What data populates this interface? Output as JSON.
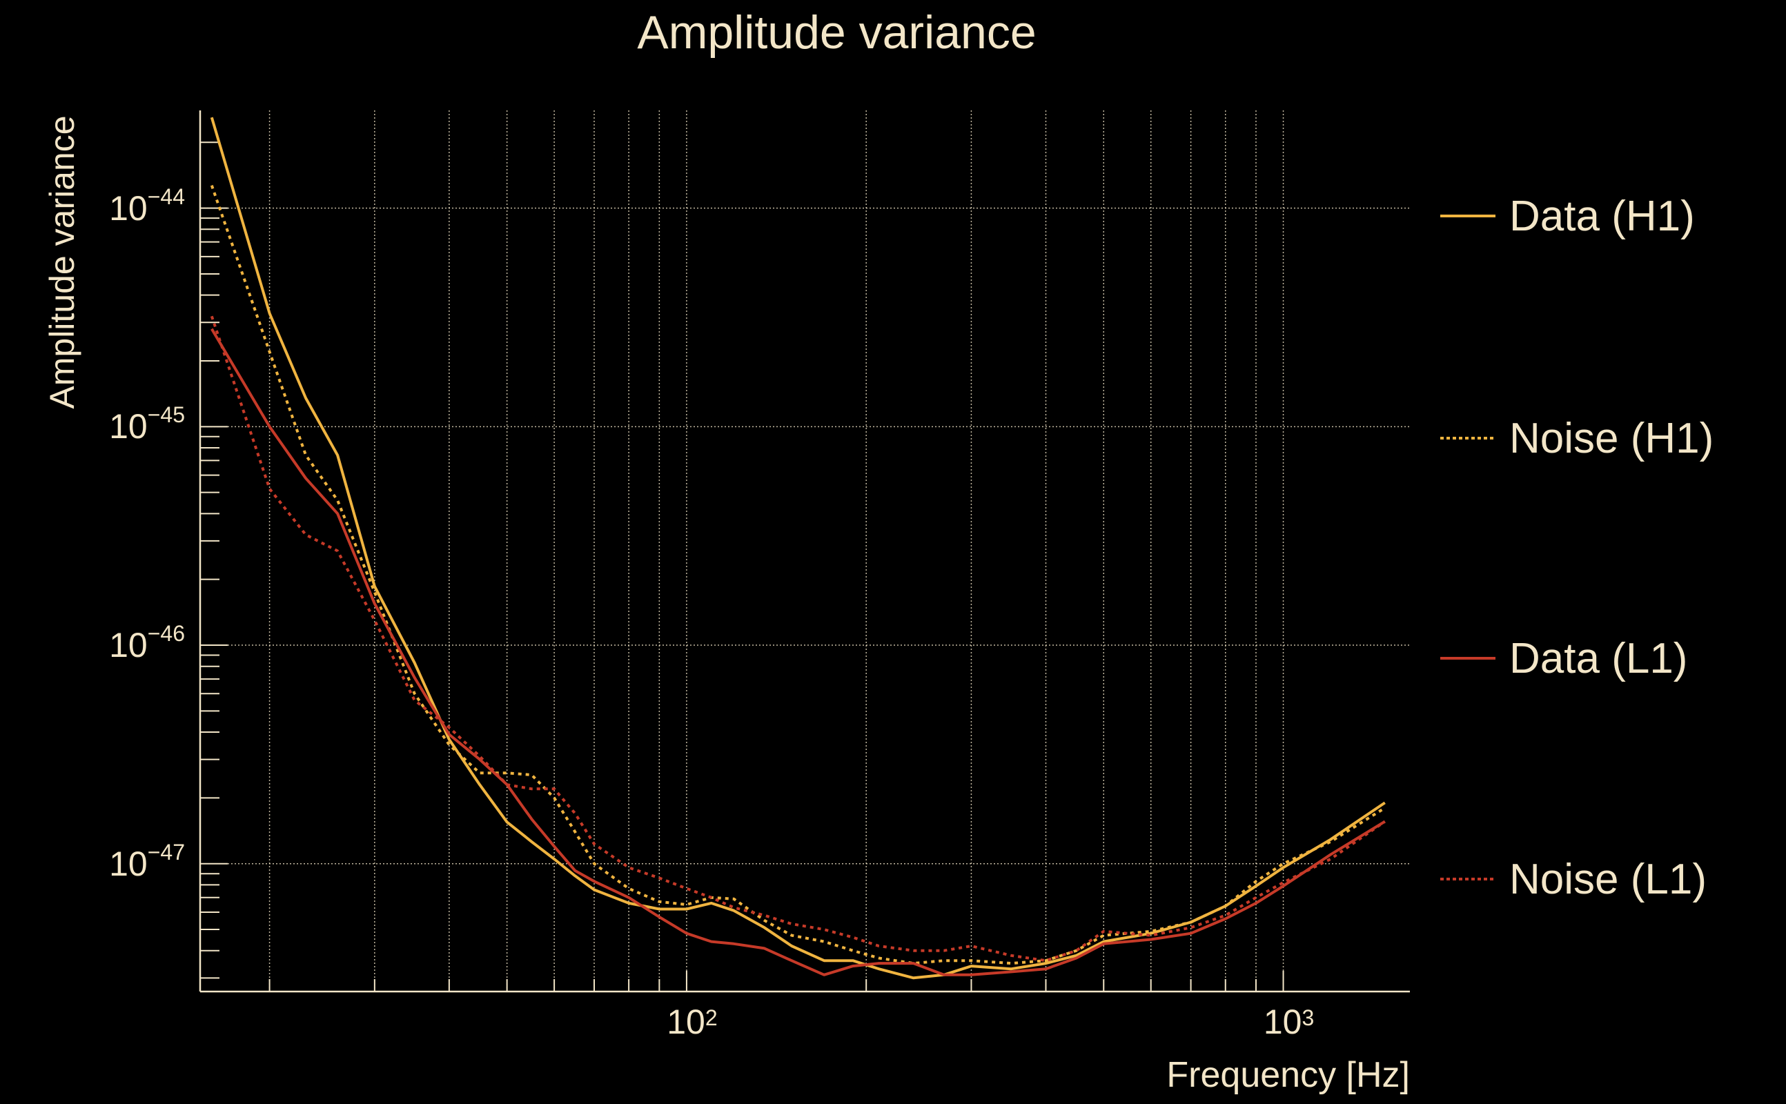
{
  "chart_data": {
    "type": "line",
    "title": "Amplitude variance",
    "xlabel": "Frequency [Hz]",
    "ylabel": "Amplitude variance",
    "xscale": "log",
    "yscale": "log",
    "xlim": [
      15.3,
      1630
    ],
    "ylim": [
      2.6e-48,
      2.8e-44
    ],
    "grid": true,
    "legend_position": "right",
    "x_ticks": [
      {
        "value": 100,
        "base": "10",
        "exp": "2"
      },
      {
        "value": 1000,
        "base": "10",
        "exp": "3"
      }
    ],
    "y_ticks": [
      {
        "value": 1e-44,
        "base": "10",
        "exp": "−44"
      },
      {
        "value": 1e-45,
        "base": "10",
        "exp": "−45"
      },
      {
        "value": 1e-46,
        "base": "10",
        "exp": "−46"
      },
      {
        "value": 1e-47,
        "base": "10",
        "exp": "−47"
      }
    ],
    "x": [
      16,
      20,
      23,
      26,
      30,
      35,
      40,
      45,
      50,
      55,
      60,
      65,
      70,
      80,
      90,
      100,
      110,
      120,
      135,
      150,
      170,
      190,
      210,
      240,
      270,
      300,
      350,
      400,
      450,
      500,
      600,
      700,
      800,
      900,
      1000,
      1200,
      1480
    ],
    "series": [
      {
        "name": "Data (H1)",
        "color": "#f0b440",
        "style": "solid",
        "values": [
          2.6e-44,
          3.3e-45,
          1.35e-45,
          7.4e-46,
          1.86e-46,
          8.3e-47,
          3.7e-47,
          2.3e-47,
          1.55e-47,
          1.26e-47,
          1.05e-47,
          8.8e-48,
          7.6e-48,
          6.6e-48,
          6.2e-48,
          6.2e-48,
          6.6e-48,
          6.1e-48,
          5.1e-48,
          4.2e-48,
          3.6e-48,
          3.6e-48,
          3.3e-48,
          3e-48,
          3.1e-48,
          3.4e-48,
          3.3e-48,
          3.5e-48,
          3.8e-48,
          4.4e-48,
          4.8e-48,
          5.4e-48,
          6.4e-48,
          7.9e-48,
          9.6e-48,
          1.29e-47,
          1.9e-47
        ]
      },
      {
        "name": "Noise (H1)",
        "color": "#f0b440",
        "style": "dotted",
        "values": [
          1.27e-44,
          2.2e-45,
          7.4e-46,
          4.6e-46,
          1.75e-46,
          6e-47,
          3.5e-47,
          2.6e-47,
          2.6e-47,
          2.55e-47,
          2e-47,
          1.4e-47,
          1e-47,
          7.7e-48,
          6.7e-48,
          6.5e-48,
          7e-48,
          6.9e-48,
          5.5e-48,
          4.7e-48,
          4.4e-48,
          4e-48,
          3.7e-48,
          3.5e-48,
          3.6e-48,
          3.6e-48,
          3.5e-48,
          3.6e-48,
          4e-48,
          4.7e-48,
          4.9e-48,
          5.4e-48,
          6.4e-48,
          8.3e-48,
          1e-47,
          1.26e-47,
          1.8e-47
        ]
      },
      {
        "name": "Data (L1)",
        "color": "#c63a28",
        "style": "solid",
        "values": [
          2.8e-45,
          1e-45,
          5.8e-46,
          4e-46,
          1.55e-46,
          7.1e-47,
          3.9e-47,
          3e-47,
          2.3e-47,
          1.6e-47,
          1.2e-47,
          9.3e-48,
          8.3e-48,
          7e-48,
          5.7e-48,
          4.8e-48,
          4.4e-48,
          4.3e-48,
          4.1e-48,
          3.6e-48,
          3.1e-48,
          3.4e-48,
          3.5e-48,
          3.5e-48,
          3.1e-48,
          3.1e-48,
          3.2e-48,
          3.3e-48,
          3.7e-48,
          4.3e-48,
          4.5e-48,
          4.8e-48,
          5.6e-48,
          6.6e-48,
          7.9e-48,
          1.1e-47,
          1.56e-47
        ]
      },
      {
        "name": "Noise (L1)",
        "color": "#c63a28",
        "style": "dotted",
        "values": [
          3.2e-45,
          5.2e-46,
          3.2e-46,
          2.7e-46,
          1.3e-46,
          5.6e-47,
          4.2e-47,
          3.1e-47,
          2.3e-47,
          2.2e-47,
          2.2e-47,
          1.7e-47,
          1.23e-47,
          9.6e-48,
          8.6e-48,
          7.7e-48,
          7e-48,
          6.3e-48,
          5.8e-48,
          5.3e-48,
          5e-48,
          4.6e-48,
          4.2e-48,
          4e-48,
          4e-48,
          4.2e-48,
          3.8e-48,
          3.6e-48,
          4e-48,
          4.9e-48,
          4.7e-48,
          5.1e-48,
          5.8e-48,
          7e-48,
          8.2e-48,
          1.05e-47,
          1.56e-47
        ]
      }
    ]
  }
}
